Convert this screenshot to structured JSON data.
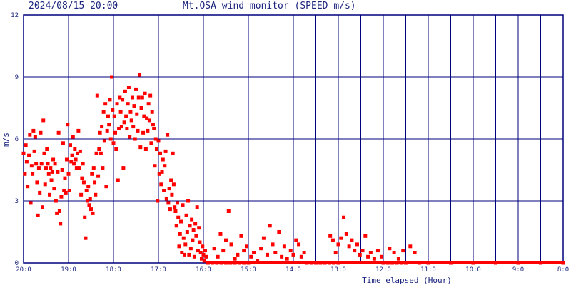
{
  "header": {
    "datetime": "2024/08/15 20:00",
    "title": "Mt.OSA wind monitor (SPEED m/s)"
  },
  "colors": {
    "grid": "#00007f",
    "text": "#1a237e",
    "points": "#ff0000",
    "background": "#ffffff"
  },
  "chart_data": {
    "type": "scatter",
    "title": "Mt.OSA wind monitor (SPEED m/s)",
    "xlabel": "Time elapsed (Hour)",
    "ylabel": "m/s",
    "ylim": [
      0,
      12
    ],
    "xlim": [
      0,
      12
    ],
    "x_axis_direction": "time runs backwards from 20:00 (left) to 8:00 (right)",
    "y_ticks": [
      "0",
      "3",
      "6",
      "9",
      "12"
    ],
    "x_ticks": [
      "20:0",
      "19:0",
      "18:0",
      "17:0",
      "16:0",
      "15:0",
      "14:0",
      "13:0",
      "12:0",
      "11:0",
      "10:0",
      "9:0",
      "8:0"
    ],
    "grid": true,
    "series": [
      {
        "values": [
          [
            0.0,
            5.3
          ],
          [
            0.03,
            4.3
          ],
          [
            0.05,
            5.7
          ],
          [
            0.07,
            4.9
          ],
          [
            0.09,
            3.7
          ],
          [
            0.12,
            5.2
          ],
          [
            0.14,
            6.2
          ],
          [
            0.16,
            2.9
          ],
          [
            0.18,
            4.7
          ],
          [
            0.2,
            4.3
          ],
          [
            0.22,
            6.4
          ],
          [
            0.24,
            5.4
          ],
          [
            0.26,
            6.1
          ],
          [
            0.28,
            4.8
          ],
          [
            0.3,
            3.9
          ],
          [
            0.32,
            2.3
          ],
          [
            0.34,
            4.6
          ],
          [
            0.36,
            3.4
          ],
          [
            0.38,
            6.3
          ],
          [
            0.4,
            4.8
          ],
          [
            0.42,
            2.7
          ],
          [
            0.44,
            6.9
          ],
          [
            0.46,
            5.3
          ],
          [
            0.48,
            3.8
          ],
          [
            0.5,
            4.6
          ],
          [
            0.52,
            5.5
          ],
          [
            0.54,
            4.8
          ],
          [
            0.56,
            4.3
          ],
          [
            0.58,
            3.3
          ],
          [
            0.6,
            4.6
          ],
          [
            0.62,
            4.0
          ],
          [
            0.64,
            4.4
          ],
          [
            0.66,
            5.0
          ],
          [
            0.68,
            3.6
          ],
          [
            0.7,
            4.8
          ],
          [
            0.72,
            3.0
          ],
          [
            0.74,
            2.4
          ],
          [
            0.76,
            4.4
          ],
          [
            0.78,
            6.3
          ],
          [
            0.8,
            2.5
          ],
          [
            0.82,
            1.9
          ],
          [
            0.84,
            3.2
          ],
          [
            0.86,
            4.5
          ],
          [
            0.88,
            5.8
          ],
          [
            0.9,
            3.5
          ],
          [
            0.92,
            4.1
          ],
          [
            0.94,
            3.4
          ],
          [
            0.96,
            5.0
          ],
          [
            0.98,
            6.7
          ],
          [
            1.0,
            4.3
          ],
          [
            1.02,
            3.5
          ],
          [
            1.04,
            5.7
          ],
          [
            1.06,
            4.9
          ],
          [
            1.08,
            5.2
          ],
          [
            1.1,
            6.1
          ],
          [
            1.12,
            4.8
          ],
          [
            1.14,
            5.5
          ],
          [
            1.16,
            5.0
          ],
          [
            1.18,
            4.6
          ],
          [
            1.2,
            5.3
          ],
          [
            1.22,
            6.4
          ],
          [
            1.24,
            4.6
          ],
          [
            1.26,
            5.4
          ],
          [
            1.28,
            3.3
          ],
          [
            1.3,
            4.1
          ],
          [
            1.32,
            4.8
          ],
          [
            1.34,
            3.9
          ],
          [
            1.36,
            2.2
          ],
          [
            1.38,
            1.2
          ],
          [
            1.4,
            3.5
          ],
          [
            1.42,
            3.0
          ],
          [
            1.44,
            3.7
          ],
          [
            1.46,
            2.8
          ],
          [
            1.48,
            3.1
          ],
          [
            1.5,
            2.6
          ],
          [
            1.52,
            4.3
          ],
          [
            1.54,
            2.4
          ],
          [
            1.56,
            4.6
          ],
          [
            1.58,
            3.9
          ],
          [
            1.6,
            3.3
          ],
          [
            1.62,
            5.3
          ],
          [
            1.64,
            8.1
          ],
          [
            1.66,
            4.2
          ],
          [
            1.68,
            5.5
          ],
          [
            1.7,
            6.3
          ],
          [
            1.72,
            5.3
          ],
          [
            1.74,
            6.6
          ],
          [
            1.76,
            4.6
          ],
          [
            1.78,
            7.3
          ],
          [
            1.8,
            5.9
          ],
          [
            1.82,
            7.7
          ],
          [
            1.84,
            3.7
          ],
          [
            1.86,
            6.4
          ],
          [
            1.88,
            7.1
          ],
          [
            1.9,
            6.7
          ],
          [
            1.92,
            7.9
          ],
          [
            1.94,
            6.0
          ],
          [
            1.96,
            9.0
          ],
          [
            1.98,
            7.4
          ],
          [
            2.0,
            5.8
          ],
          [
            2.02,
            7.1
          ],
          [
            2.04,
            6.3
          ],
          [
            2.06,
            5.5
          ],
          [
            2.08,
            7.7
          ],
          [
            2.1,
            4.0
          ],
          [
            2.12,
            6.5
          ],
          [
            2.14,
            8.0
          ],
          [
            2.16,
            7.3
          ],
          [
            2.18,
            6.6
          ],
          [
            2.2,
            7.9
          ],
          [
            2.22,
            4.6
          ],
          [
            2.24,
            6.8
          ],
          [
            2.26,
            8.3
          ],
          [
            2.28,
            7.1
          ],
          [
            2.3,
            6.5
          ],
          [
            2.32,
            7.7
          ],
          [
            2.34,
            8.5
          ],
          [
            2.36,
            6.1
          ],
          [
            2.38,
            7.3
          ],
          [
            2.4,
            6.9
          ],
          [
            2.42,
            8.0
          ],
          [
            2.44,
            6.6
          ],
          [
            2.46,
            7.6
          ],
          [
            2.48,
            6.0
          ],
          [
            2.5,
            8.4
          ],
          [
            2.52,
            7.2
          ],
          [
            2.54,
            6.4
          ],
          [
            2.56,
            8.0
          ],
          [
            2.58,
            9.1
          ],
          [
            2.6,
            5.6
          ],
          [
            2.62,
            7.5
          ],
          [
            2.64,
            8.0
          ],
          [
            2.66,
            6.3
          ],
          [
            2.68,
            7.1
          ],
          [
            2.7,
            8.2
          ],
          [
            2.72,
            5.5
          ],
          [
            2.74,
            7.0
          ],
          [
            2.76,
            6.4
          ],
          [
            2.78,
            7.7
          ],
          [
            2.8,
            6.9
          ],
          [
            2.82,
            8.1
          ],
          [
            2.84,
            5.8
          ],
          [
            2.86,
            7.3
          ],
          [
            2.88,
            6.7
          ],
          [
            2.9,
            6.5
          ],
          [
            2.92,
            4.7
          ],
          [
            2.94,
            6.0
          ],
          [
            2.96,
            5.5
          ],
          [
            2.98,
            3.0
          ],
          [
            3.0,
            5.9
          ],
          [
            3.02,
            4.3
          ],
          [
            3.04,
            5.3
          ],
          [
            3.06,
            3.8
          ],
          [
            3.08,
            4.4
          ],
          [
            3.1,
            5.0
          ],
          [
            3.12,
            3.5
          ],
          [
            3.14,
            4.7
          ],
          [
            3.16,
            5.4
          ],
          [
            3.18,
            3.1
          ],
          [
            3.2,
            6.2
          ],
          [
            3.22,
            2.9
          ],
          [
            3.24,
            3.6
          ],
          [
            3.26,
            2.6
          ],
          [
            3.28,
            4.0
          ],
          [
            3.3,
            3.3
          ],
          [
            3.32,
            5.3
          ],
          [
            3.34,
            3.8
          ],
          [
            3.36,
            2.7
          ],
          [
            3.38,
            2.5
          ],
          [
            3.4,
            1.8
          ],
          [
            3.42,
            2.9
          ],
          [
            3.44,
            2.2
          ],
          [
            3.46,
            0.8
          ],
          [
            3.48,
            1.4
          ],
          [
            3.5,
            2.0
          ],
          [
            3.52,
            0.5
          ],
          [
            3.54,
            2.8
          ],
          [
            3.56,
            1.2
          ],
          [
            3.58,
            0.4
          ],
          [
            3.6,
            0.9
          ],
          [
            3.62,
            2.3
          ],
          [
            3.64,
            1.5
          ],
          [
            3.66,
            3.0
          ],
          [
            3.68,
            0.4
          ],
          [
            3.7,
            1.8
          ],
          [
            3.72,
            0.7
          ],
          [
            3.74,
            2.1
          ],
          [
            3.76,
            1.1
          ],
          [
            3.78,
            1.6
          ],
          [
            3.8,
            0.3
          ],
          [
            3.82,
            1.9
          ],
          [
            3.84,
            1.3
          ],
          [
            3.86,
            2.7
          ],
          [
            3.88,
            0.6
          ],
          [
            3.9,
            1.7
          ],
          [
            3.92,
            1.0
          ],
          [
            3.94,
            0.5
          ],
          [
            3.96,
            0.2
          ],
          [
            3.98,
            0.8
          ],
          [
            4.0,
            0.4
          ],
          [
            4.02,
            0.1
          ],
          [
            4.04,
            0.6
          ],
          [
            4.06,
            0.3
          ],
          [
            4.1,
            0.0
          ],
          [
            4.2,
            0.0
          ],
          [
            4.3,
            0.0
          ],
          [
            4.4,
            0.0
          ],
          [
            4.5,
            0.0
          ],
          [
            4.6,
            0.0
          ],
          [
            4.7,
            0.0
          ],
          [
            4.8,
            0.0
          ],
          [
            4.9,
            0.0
          ],
          [
            5.0,
            0.0
          ],
          [
            4.24,
            0.7
          ],
          [
            4.32,
            0.3
          ],
          [
            4.38,
            1.4
          ],
          [
            4.44,
            0.6
          ],
          [
            4.5,
            1.1
          ],
          [
            4.56,
            2.5
          ],
          [
            4.62,
            0.9
          ],
          [
            4.7,
            0.2
          ],
          [
            4.76,
            0.4
          ],
          [
            4.84,
            1.3
          ],
          [
            4.9,
            0.6
          ],
          [
            4.96,
            0.8
          ],
          [
            5.06,
            0.3
          ],
          [
            5.12,
            0.5
          ],
          [
            5.2,
            0.1
          ],
          [
            5.28,
            0.7
          ],
          [
            5.34,
            1.2
          ],
          [
            5.42,
            0.4
          ],
          [
            5.48,
            1.8
          ],
          [
            5.54,
            0.9
          ],
          [
            5.6,
            0.5
          ],
          [
            5.68,
            1.5
          ],
          [
            5.74,
            0.3
          ],
          [
            5.8,
            0.8
          ],
          [
            5.86,
            0.2
          ],
          [
            5.94,
            0.6
          ],
          [
            6.0,
            0.4
          ],
          [
            6.06,
            1.1
          ],
          [
            6.12,
            0.9
          ],
          [
            6.18,
            0.3
          ],
          [
            6.24,
            0.5
          ],
          [
            6.3,
            0.0
          ],
          [
            6.4,
            0.0
          ],
          [
            6.5,
            0.0
          ],
          [
            6.6,
            0.0
          ],
          [
            6.7,
            0.0
          ],
          [
            6.8,
            0.0
          ],
          [
            6.9,
            0.0
          ],
          [
            7.0,
            0.0
          ],
          [
            6.82,
            1.3
          ],
          [
            6.88,
            1.1
          ],
          [
            6.94,
            0.5
          ],
          [
            7.0,
            0.9
          ],
          [
            7.06,
            1.2
          ],
          [
            7.12,
            2.2
          ],
          [
            7.18,
            1.4
          ],
          [
            7.24,
            0.8
          ],
          [
            7.3,
            1.1
          ],
          [
            7.36,
            0.6
          ],
          [
            7.42,
            0.9
          ],
          [
            7.48,
            0.4
          ],
          [
            7.54,
            0.6
          ],
          [
            7.6,
            1.3
          ],
          [
            7.66,
            0.3
          ],
          [
            7.72,
            0.5
          ],
          [
            7.8,
            0.2
          ],
          [
            7.88,
            0.6
          ],
          [
            7.96,
            0.3
          ],
          [
            8.0,
            0.0
          ],
          [
            8.1,
            0.0
          ],
          [
            8.2,
            0.0
          ],
          [
            8.3,
            0.0
          ],
          [
            8.4,
            0.0
          ],
          [
            8.5,
            0.0
          ],
          [
            8.14,
            0.7
          ],
          [
            8.24,
            0.5
          ],
          [
            8.34,
            0.2
          ],
          [
            8.44,
            0.6
          ],
          [
            8.6,
            0.8
          ],
          [
            8.7,
            0.5
          ],
          [
            8.8,
            0.0
          ],
          [
            9.0,
            0.0
          ],
          [
            9.5,
            0.0
          ],
          [
            10.0,
            0.0
          ],
          [
            10.5,
            0.0
          ],
          [
            11.0,
            0.0
          ],
          [
            11.5,
            0.0
          ],
          [
            12.0,
            0.0
          ]
        ]
      }
    ]
  }
}
